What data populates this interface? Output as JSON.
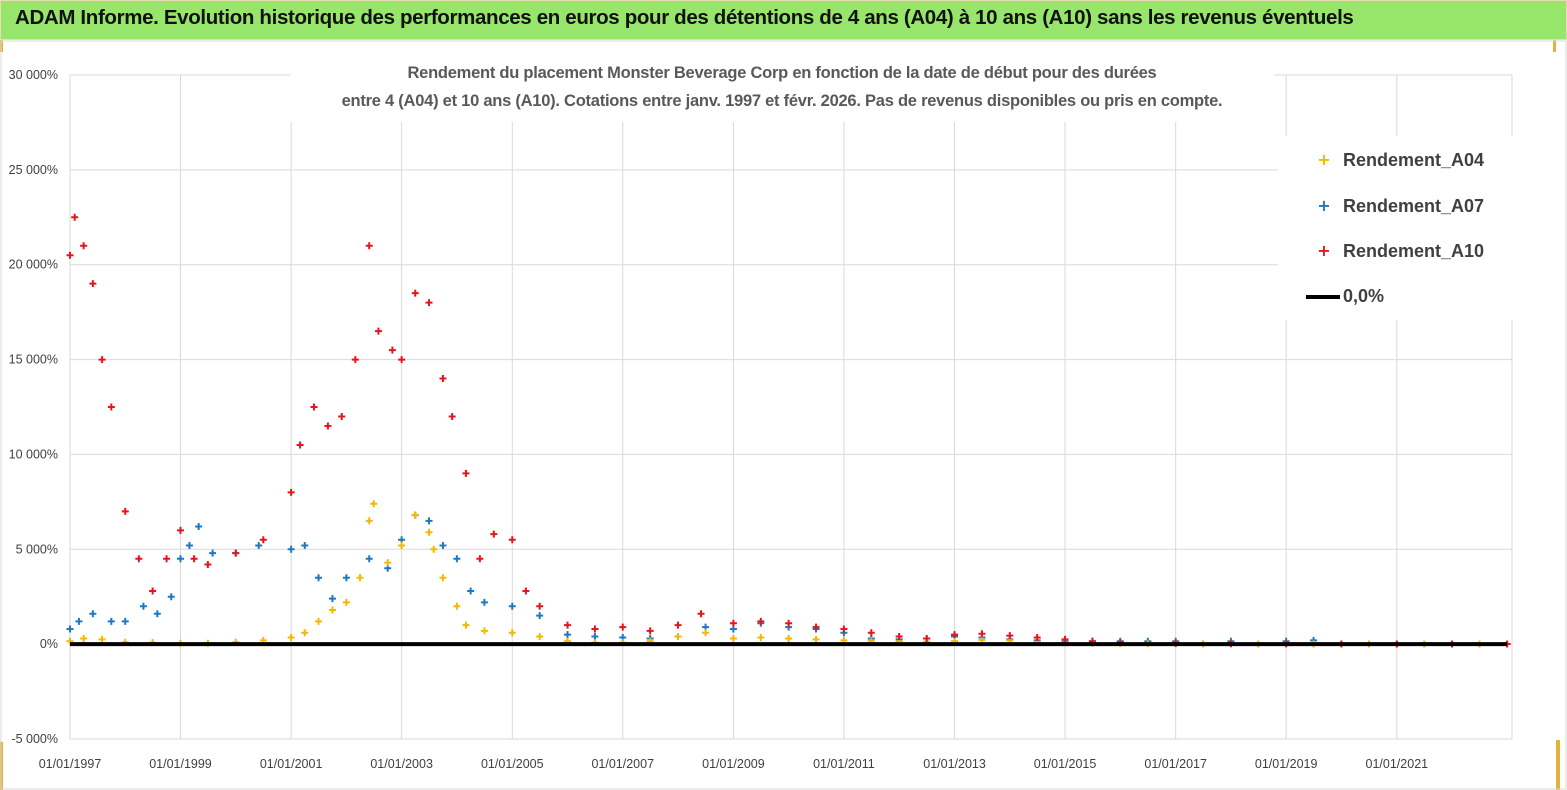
{
  "header": {
    "title": "ADAM Informe. Evolution historique des performances en euros pour des détentions de 4 ans (A04) à 10 ans (A10) sans les revenus éventuels",
    "background": "#97e56b"
  },
  "chart_data": {
    "type": "scatter",
    "title_lines": [
      "Rendement du placement Monster Beverage Corp en fonction de la date de début pour des durées",
      "entre 4 (A04) et 10 ans (A10).  Cotations entre janv. 1997 et févr. 2026.  Pas de revenus disponibles ou pris en compte."
    ],
    "xlabel": "",
    "ylabel": "",
    "ylim": [
      -5000,
      30000
    ],
    "yticks": [
      -5000,
      0,
      5000,
      10000,
      15000,
      20000,
      25000,
      30000
    ],
    "ytick_labels": [
      "-5 000%",
      "0%",
      "5 000%",
      "10 000%",
      "15 000%",
      "20 000%",
      "25 000%",
      "30 000%"
    ],
    "xlim": [
      "1997-01-01",
      "2023-02-01"
    ],
    "xticks": [
      "1997-01-01",
      "1999-01-01",
      "2001-01-01",
      "2003-01-01",
      "2005-01-01",
      "2007-01-01",
      "2009-01-01",
      "2011-01-01",
      "2013-01-01",
      "2015-01-01",
      "2017-01-01",
      "2019-01-01",
      "2021-01-01"
    ],
    "xtick_labels": [
      "01/01/1997",
      "01/01/1999",
      "01/01/2001",
      "01/01/2003",
      "01/01/2005",
      "01/01/2007",
      "01/01/2009",
      "01/01/2011",
      "01/01/2013",
      "01/01/2015",
      "01/01/2017",
      "01/01/2019",
      "01/01/2021"
    ],
    "grid": true,
    "legend_position": "right",
    "legend": [
      {
        "label": "Rendement_A04",
        "color": "#f5b800",
        "marker": "+"
      },
      {
        "label": "Rendement_A07",
        "color": "#1f78c1",
        "marker": "+"
      },
      {
        "label": "Rendement_A10",
        "color": "#e8141c",
        "marker": "+"
      },
      {
        "label": "0,0%",
        "color": "#000000",
        "marker": "line"
      }
    ],
    "series": [
      {
        "name": "Rendement_A04",
        "color": "#f5b800",
        "x": [
          "1997-01-01",
          "1997-04-01",
          "1997-08-01",
          "1998-01-01",
          "1998-07-01",
          "1999-01-01",
          "1999-07-01",
          "2000-01-01",
          "2000-07-01",
          "2001-01-01",
          "2001-04-01",
          "2001-07-01",
          "2001-10-01",
          "2002-01-01",
          "2002-04-01",
          "2002-06-01",
          "2002-07-01",
          "2002-10-01",
          "2003-01-01",
          "2003-04-01",
          "2003-07-01",
          "2003-08-01",
          "2003-10-01",
          "2004-01-01",
          "2004-03-01",
          "2004-07-01",
          "2005-01-01",
          "2005-07-01",
          "2006-01-01",
          "2006-07-01",
          "2007-01-01",
          "2007-07-01",
          "2008-01-01",
          "2008-07-01",
          "2009-01-01",
          "2009-07-01",
          "2010-01-01",
          "2010-07-01",
          "2011-01-01",
          "2011-07-01",
          "2012-01-01",
          "2012-07-01",
          "2013-01-01",
          "2013-07-01",
          "2014-01-01",
          "2014-07-01",
          "2015-01-01",
          "2015-07-01",
          "2016-01-01",
          "2016-07-01",
          "2017-01-01",
          "2017-07-01",
          "2018-01-01",
          "2018-07-01",
          "2019-01-01",
          "2019-07-01",
          "2020-01-01",
          "2020-07-01",
          "2021-01-01",
          "2021-07-01",
          "2022-01-01",
          "2022-07-01",
          "2022-12-31"
        ],
        "values": [
          150,
          300,
          250,
          100,
          80,
          50,
          50,
          100,
          200,
          350,
          600,
          1200,
          1800,
          2200,
          3500,
          6500,
          7400,
          4300,
          5200,
          6800,
          5900,
          5000,
          3500,
          2000,
          1000,
          700,
          600,
          400,
          150,
          80,
          80,
          150,
          400,
          600,
          300,
          350,
          300,
          250,
          200,
          180,
          150,
          130,
          160,
          220,
          200,
          120,
          80,
          40,
          30,
          20,
          20,
          20,
          10,
          10,
          10,
          10,
          5,
          5,
          5,
          5,
          5,
          5,
          5
        ]
      },
      {
        "name": "Rendement_A07",
        "color": "#1f78c1",
        "x": [
          "1997-01-01",
          "1997-03-01",
          "1997-06-01",
          "1997-10-01",
          "1998-01-01",
          "1998-05-01",
          "1998-08-01",
          "1998-11-01",
          "1999-01-01",
          "1999-03-01",
          "1999-05-01",
          "1999-08-01",
          "2000-01-01",
          "2000-06-01",
          "2001-01-01",
          "2001-04-01",
          "2001-07-01",
          "2001-10-01",
          "2002-01-01",
          "2002-06-01",
          "2002-10-01",
          "2003-01-01",
          "2003-04-01",
          "2003-07-01",
          "2003-10-01",
          "2004-01-01",
          "2004-04-01",
          "2004-07-01",
          "2005-01-01",
          "2005-07-01",
          "2006-01-01",
          "2006-07-01",
          "2007-01-01",
          "2007-07-01",
          "2008-01-01",
          "2008-07-01",
          "2009-01-01",
          "2009-07-01",
          "2010-01-01",
          "2010-07-01",
          "2011-01-01",
          "2011-07-01",
          "2012-01-01",
          "2012-07-01",
          "2013-01-01",
          "2013-07-01",
          "2014-01-01",
          "2014-07-01",
          "2015-01-01",
          "2015-07-01",
          "2016-01-01",
          "2016-07-01",
          "2017-01-01",
          "2018-01-01",
          "2019-01-01",
          "2019-07-01"
        ],
        "values": [
          800,
          1200,
          1600,
          1200,
          1200,
          2000,
          1600,
          2500,
          4500,
          5200,
          6200,
          4800,
          4800,
          5200,
          5000,
          5200,
          3500,
          2400,
          3500,
          4500,
          4000,
          5500,
          6800,
          6500,
          5200,
          4500,
          2800,
          2200,
          2000,
          1500,
          500,
          400,
          350,
          300,
          400,
          900,
          800,
          1100,
          900,
          800,
          600,
          300,
          250,
          300,
          400,
          350,
          250,
          200,
          150,
          150,
          150,
          150,
          150,
          150,
          150,
          200
        ]
      },
      {
        "name": "Rendement_A10",
        "color": "#e8141c",
        "x": [
          "1997-01-01",
          "1997-02-01",
          "1997-04-01",
          "1997-06-01",
          "1997-08-01",
          "1997-10-01",
          "1998-01-01",
          "1998-04-01",
          "1998-07-01",
          "1998-10-01",
          "1999-01-01",
          "1999-04-01",
          "1999-07-01",
          "2000-01-01",
          "2000-07-01",
          "2001-01-01",
          "2001-03-01",
          "2001-06-01",
          "2001-09-01",
          "2001-12-01",
          "2002-03-01",
          "2002-06-01",
          "2002-08-01",
          "2002-11-01",
          "2003-01-01",
          "2003-04-01",
          "2003-07-01",
          "2003-10-01",
          "2003-12-01",
          "2004-03-01",
          "2004-06-01",
          "2004-09-01",
          "2005-01-01",
          "2005-04-01",
          "2005-07-01",
          "2006-01-01",
          "2006-07-01",
          "2007-01-01",
          "2007-07-01",
          "2008-01-01",
          "2008-06-01",
          "2009-01-01",
          "2009-07-01",
          "2010-01-01",
          "2010-07-01",
          "2011-01-01",
          "2011-07-01",
          "2012-01-01",
          "2012-07-01",
          "2013-01-01",
          "2013-07-01",
          "2014-01-01",
          "2014-07-01",
          "2015-01-01",
          "2015-07-01",
          "2016-01-01",
          "2017-01-01",
          "2018-01-01",
          "2019-01-01",
          "2020-01-01",
          "2021-01-01",
          "2022-01-01",
          "2022-12-31"
        ],
        "values": [
          20500,
          22500,
          21000,
          19000,
          15000,
          12500,
          7000,
          4500,
          2800,
          4500,
          6000,
          4500,
          4200,
          4800,
          5500,
          8000,
          10500,
          12500,
          11500,
          12000,
          15000,
          21000,
          16500,
          15500,
          15000,
          18500,
          18000,
          14000,
          12000,
          9000,
          4500,
          5800,
          5500,
          2800,
          2000,
          1000,
          800,
          900,
          700,
          1000,
          1600,
          1100,
          1200,
          1100,
          900,
          800,
          600,
          400,
          300,
          500,
          550,
          450,
          350,
          250,
          150,
          100,
          50,
          30,
          20,
          10,
          5,
          5,
          5
        ]
      },
      {
        "name": "0,0%",
        "color": "#000000",
        "x": [
          "1997-01-01",
          "2022-12-31"
        ],
        "values": [
          0,
          0
        ]
      }
    ]
  }
}
